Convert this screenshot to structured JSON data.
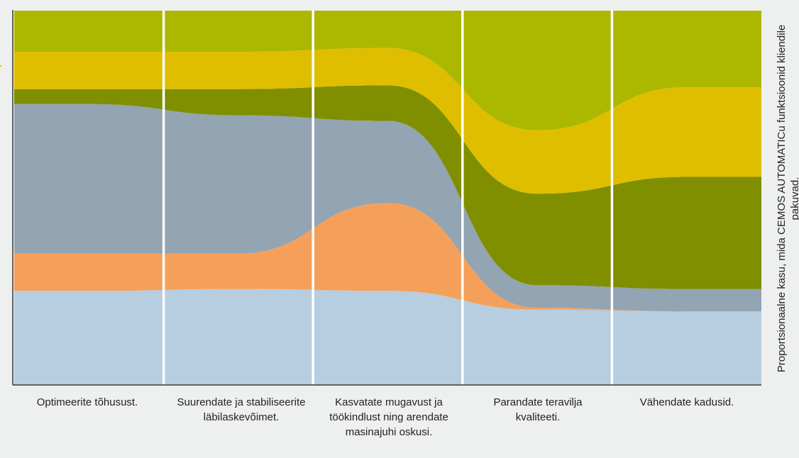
{
  "chart_data": {
    "type": "area",
    "stacked": true,
    "normalized": true,
    "title": "",
    "xlabel": "",
    "ylabel": "Proportsionaalne kasu, mida CEMOS AUTOMATICu funktsioonid kliendile pakuvad.",
    "ylim": [
      0,
      1
    ],
    "grid": false,
    "legend": "none",
    "categories": [
      "Optimeerite tõhusust.",
      "Suurendate ja stabiliseerite läbilaskevõimet.",
      "Kasvatate mugavust ja töökindlust ning arendate masinajuhi oskusi.",
      "Parandate teravilja kvaliteeti.",
      "Vähendate kadusid."
    ],
    "series": [
      {
        "color": "#b7cde0",
        "values": [
          0.25,
          0.255,
          0.25,
          0.2,
          0.195
        ]
      },
      {
        "color": "#f5a05a",
        "values": [
          0.1,
          0.095,
          0.235,
          0.005,
          0.0
        ]
      },
      {
        "color": "#93a4b2",
        "values": [
          0.4,
          0.37,
          0.22,
          0.06,
          0.06
        ]
      },
      {
        "color": "#7f8f00",
        "values": [
          0.04,
          0.07,
          0.095,
          0.245,
          0.3
        ]
      },
      {
        "color": "#dfbe00",
        "values": [
          0.1,
          0.1,
          0.1,
          0.17,
          0.24
        ]
      },
      {
        "color": "#acb800",
        "values": [
          0.11,
          0.11,
          0.1,
          0.32,
          0.205
        ]
      }
    ]
  }
}
